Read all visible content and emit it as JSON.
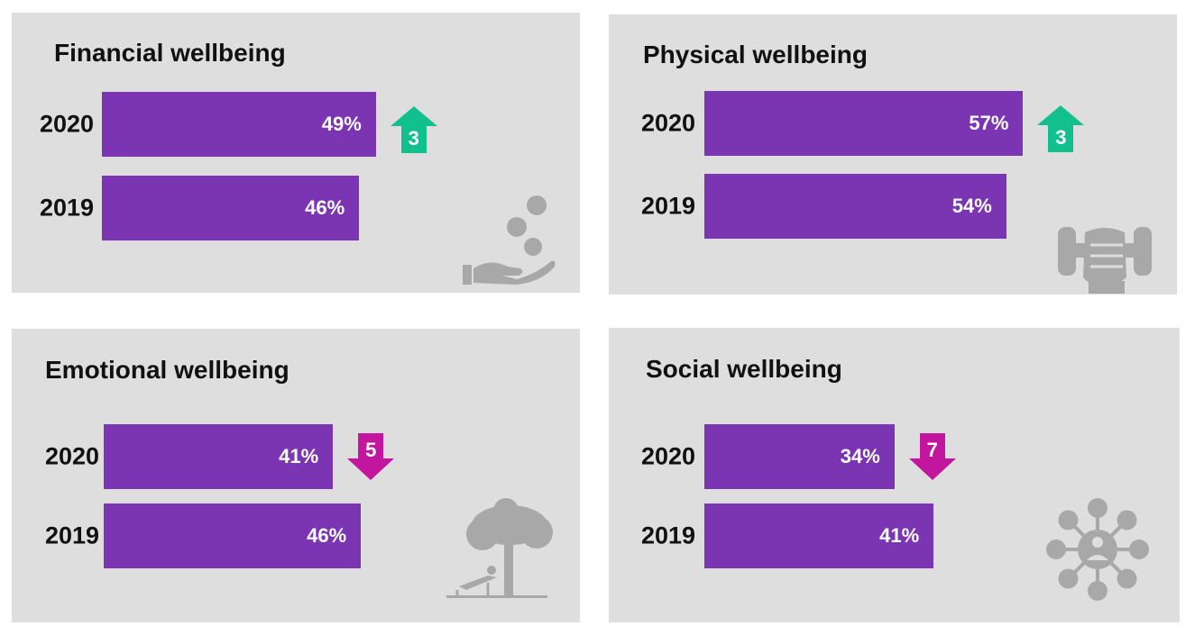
{
  "colors": {
    "bar": "#7b35b3",
    "up": "#12c08e",
    "down": "#c2169e",
    "panel": "#dededf",
    "icon": "#a8a8a8"
  },
  "chart_data": [
    {
      "type": "bar",
      "title": "Financial wellbeing",
      "categories": [
        "2020",
        "2019"
      ],
      "values": [
        49,
        46
      ],
      "labels": [
        "49%",
        "46%"
      ],
      "change": {
        "direction": "up",
        "value": "3"
      },
      "icon": "hand-coins-icon"
    },
    {
      "type": "bar",
      "title": "Physical wellbeing",
      "categories": [
        "2020",
        "2019"
      ],
      "values": [
        57,
        54
      ],
      "labels": [
        "57%",
        "54%"
      ],
      "change": {
        "direction": "up",
        "value": "3"
      },
      "icon": "dumbbell-fist-icon"
    },
    {
      "type": "bar",
      "title": "Emotional wellbeing",
      "categories": [
        "2020",
        "2019"
      ],
      "values": [
        41,
        46
      ],
      "labels": [
        "41%",
        "46%"
      ],
      "change": {
        "direction": "down",
        "value": "5"
      },
      "icon": "tree-relaxing-icon"
    },
    {
      "type": "bar",
      "title": "Social wellbeing",
      "categories": [
        "2020",
        "2019"
      ],
      "values": [
        34,
        41
      ],
      "labels": [
        "34%",
        "41%"
      ],
      "change": {
        "direction": "down",
        "value": "7"
      },
      "icon": "social-network-icon"
    }
  ]
}
